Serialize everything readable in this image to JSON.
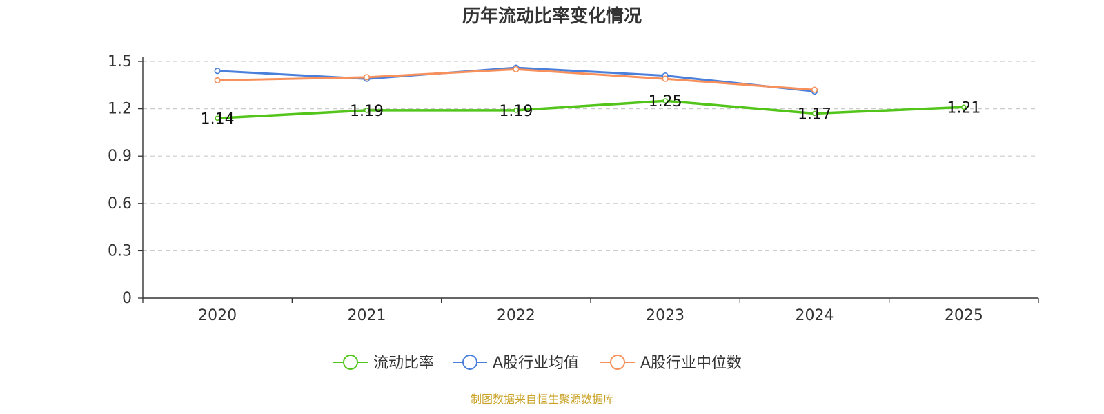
{
  "chart_data": {
    "type": "line",
    "title": "历年流动比率变化情况",
    "categories": [
      "2020",
      "2021",
      "2022",
      "2023",
      "2024",
      "2025"
    ],
    "ylim": [
      0,
      1.5
    ],
    "yticks": [
      "0",
      "0.3",
      "0.6",
      "0.9",
      "1.2",
      "1.5"
    ],
    "grid": true,
    "legend_position": "bottom-center",
    "series": [
      {
        "name": "流动比率",
        "color": "#52c41a",
        "values": [
          1.14,
          1.19,
          1.19,
          1.25,
          1.17,
          1.21
        ],
        "labels": [
          "1.14",
          "1.19",
          "1.19",
          "1.25",
          "1.17",
          "1.21"
        ]
      },
      {
        "name": "A股行业均值",
        "color": "#4a7fdc",
        "values": [
          1.44,
          1.39,
          1.46,
          1.41,
          1.31,
          null
        ]
      },
      {
        "name": "A股行业中位数",
        "color": "#f7905a",
        "values": [
          1.38,
          1.4,
          1.45,
          1.39,
          1.32,
          null
        ]
      }
    ],
    "source": "制图数据来自恒生聚源数据库",
    "source_color": "#c9a227"
  }
}
